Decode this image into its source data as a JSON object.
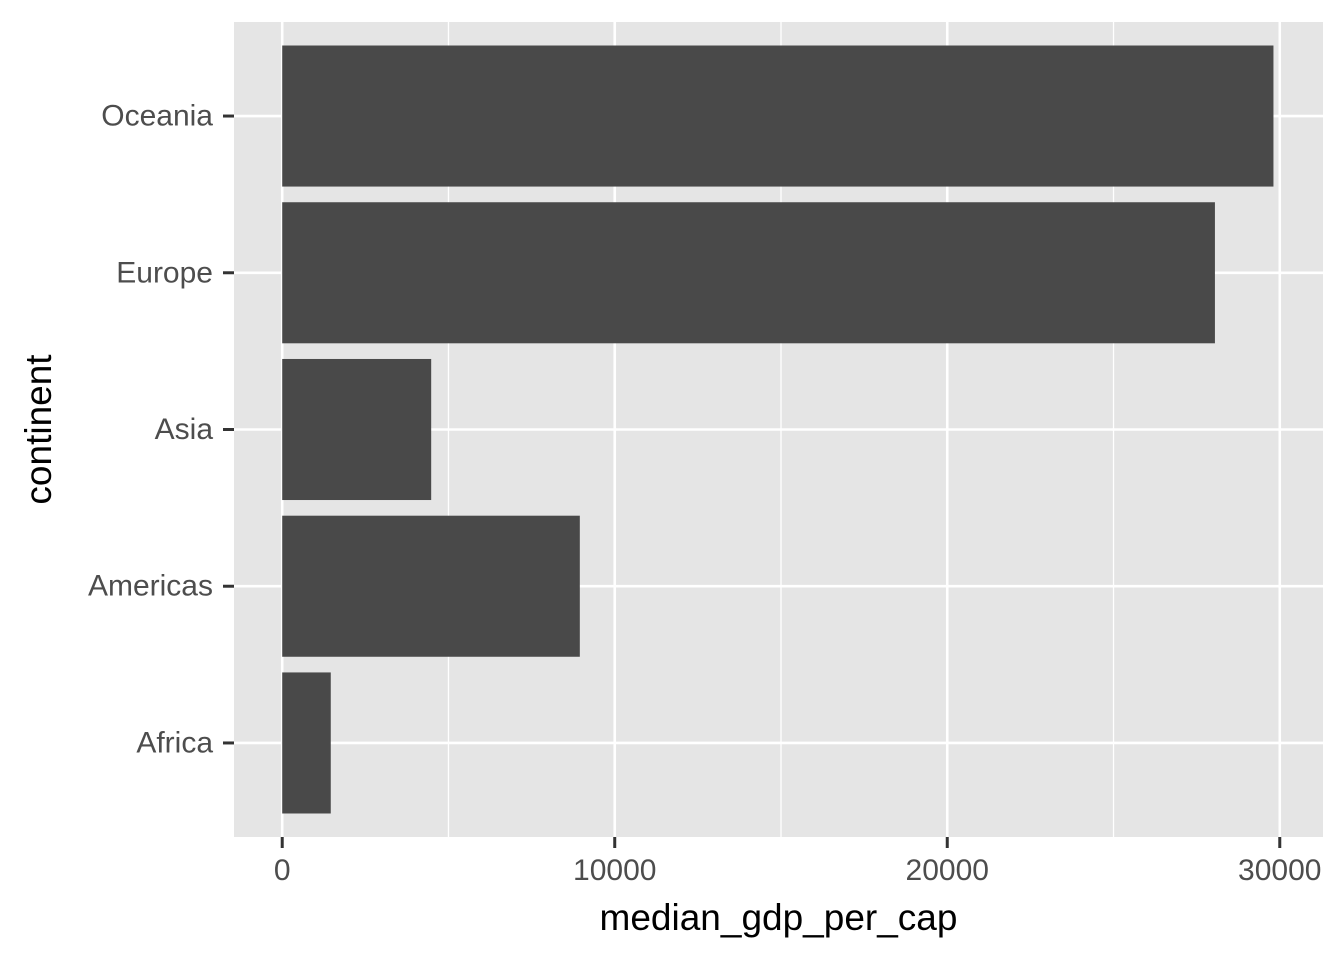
{
  "chart_data": {
    "type": "bar",
    "orientation": "horizontal",
    "categories": [
      "Africa",
      "Americas",
      "Asia",
      "Europe",
      "Oceania"
    ],
    "values": [
      1460,
      8950,
      4480,
      28050,
      29810
    ],
    "xlabel": "median_gdp_per_cap",
    "ylabel": "continent",
    "xlim": [
      -1450,
      31300
    ],
    "xticks": [
      0,
      10000,
      20000,
      30000
    ],
    "xtick_labels": [
      "0",
      "10000",
      "20000",
      "30000"
    ],
    "grid": true,
    "legend": "none",
    "colors": {
      "bar": "#494949",
      "panel_background": "#e5e5e5",
      "grid_line": "#ffffff",
      "tick_label": "#4d4d4d",
      "tick_mark": "#333333",
      "axis_title": "#000000"
    }
  }
}
